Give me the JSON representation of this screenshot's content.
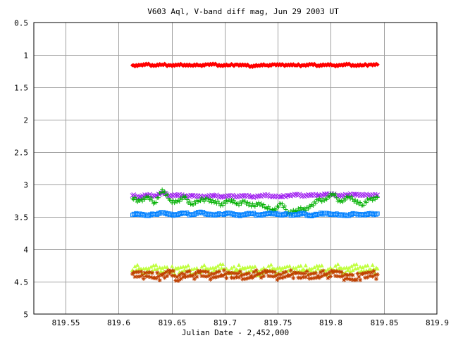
{
  "chart_data": {
    "type": "scatter",
    "title": "V603 Aql, V-band diff mag, Jun 29 2003 UT",
    "xlabel": "Julian Date - 2,452,000",
    "ylabel": "",
    "xlim": [
      819.52,
      819.9
    ],
    "ylim": [
      0.5,
      5
    ],
    "y_inverted": true,
    "grid": true,
    "x_ticks": [
      {
        "value": 819.55,
        "label": "819.55"
      },
      {
        "value": 819.6,
        "label": "819.6"
      },
      {
        "value": 819.65,
        "label": "819.65"
      },
      {
        "value": 819.7,
        "label": "819.7"
      },
      {
        "value": 819.75,
        "label": "819.75"
      },
      {
        "value": 819.8,
        "label": "819.8"
      },
      {
        "value": 819.85,
        "label": "819.85"
      },
      {
        "value": 819.9,
        "label": "819.9"
      }
    ],
    "y_ticks": [
      {
        "value": 0.5,
        "label": "0.5"
      },
      {
        "value": 1,
        "label": "1"
      },
      {
        "value": 1.5,
        "label": "1.5"
      },
      {
        "value": 2,
        "label": "2"
      },
      {
        "value": 2.5,
        "label": "2.5"
      },
      {
        "value": 3,
        "label": "3"
      },
      {
        "value": 3.5,
        "label": "3.5"
      },
      {
        "value": 4,
        "label": "4"
      },
      {
        "value": 4.5,
        "label": "4.5"
      },
      {
        "value": 5,
        "label": "5"
      }
    ],
    "series": [
      {
        "marker": "diamond",
        "color": "#ff0000",
        "x": [
          819.613,
          819.62,
          819.627,
          819.634,
          819.641,
          819.648,
          819.655,
          819.662,
          819.669,
          819.676,
          819.683,
          819.69,
          819.697,
          819.704,
          819.711,
          819.718,
          819.725,
          819.732,
          819.739,
          819.746,
          819.753,
          819.76,
          819.767,
          819.774,
          819.781,
          819.788,
          819.795,
          819.802,
          819.809,
          819.816,
          819.823,
          819.83,
          819.837,
          819.844
        ],
        "y": [
          1.16,
          1.16,
          1.15,
          1.16,
          1.15,
          1.16,
          1.16,
          1.15,
          1.16,
          1.16,
          1.15,
          1.15,
          1.16,
          1.16,
          1.15,
          1.16,
          1.17,
          1.16,
          1.16,
          1.15,
          1.16,
          1.15,
          1.16,
          1.16,
          1.15,
          1.16,
          1.15,
          1.16,
          1.16,
          1.15,
          1.16,
          1.16,
          1.15,
          1.15
        ]
      },
      {
        "marker": "x",
        "color": "#a020f0",
        "x": [
          819.613,
          819.62,
          819.627,
          819.634,
          819.641,
          819.648,
          819.655,
          819.662,
          819.669,
          819.676,
          819.683,
          819.69,
          819.697,
          819.704,
          819.711,
          819.718,
          819.725,
          819.732,
          819.739,
          819.746,
          819.753,
          819.76,
          819.767,
          819.774,
          819.781,
          819.788,
          819.795,
          819.802,
          819.809,
          819.816,
          819.823,
          819.83,
          819.837,
          819.844
        ],
        "y": [
          3.17,
          3.19,
          3.16,
          3.18,
          3.13,
          3.17,
          3.16,
          3.18,
          3.17,
          3.19,
          3.18,
          3.17,
          3.19,
          3.18,
          3.18,
          3.17,
          3.19,
          3.18,
          3.17,
          3.18,
          3.19,
          3.17,
          3.16,
          3.17,
          3.16,
          3.17,
          3.15,
          3.16,
          3.17,
          3.16,
          3.15,
          3.17,
          3.16,
          3.16
        ]
      },
      {
        "marker": "plus",
        "color": "#00b000",
        "x": [
          819.613,
          819.62,
          819.627,
          819.634,
          819.641,
          819.648,
          819.655,
          819.662,
          819.669,
          819.676,
          819.683,
          819.69,
          819.697,
          819.704,
          819.711,
          819.718,
          819.725,
          819.732,
          819.739,
          819.746,
          819.753,
          819.76,
          819.767,
          819.774,
          819.781,
          819.788,
          819.795,
          819.802,
          819.809,
          819.816,
          819.823,
          819.83,
          819.837,
          819.844
        ],
        "y": [
          3.22,
          3.25,
          3.2,
          3.28,
          3.08,
          3.24,
          3.27,
          3.2,
          3.3,
          3.25,
          3.22,
          3.28,
          3.3,
          3.24,
          3.3,
          3.26,
          3.34,
          3.28,
          3.36,
          3.4,
          3.3,
          3.43,
          3.4,
          3.38,
          3.34,
          3.25,
          3.22,
          3.14,
          3.27,
          3.2,
          3.24,
          3.32,
          3.22,
          3.2
        ]
      },
      {
        "marker": "square",
        "color": "#0080ff",
        "x": [
          819.613,
          819.62,
          819.627,
          819.634,
          819.641,
          819.648,
          819.655,
          819.662,
          819.669,
          819.676,
          819.683,
          819.69,
          819.697,
          819.704,
          819.711,
          819.718,
          819.725,
          819.732,
          819.739,
          819.746,
          819.753,
          819.76,
          819.767,
          819.774,
          819.781,
          819.788,
          819.795,
          819.802,
          819.809,
          819.816,
          819.823,
          819.83,
          819.837,
          819.844
        ],
        "y": [
          3.47,
          3.45,
          3.48,
          3.46,
          3.43,
          3.47,
          3.46,
          3.44,
          3.47,
          3.43,
          3.45,
          3.47,
          3.46,
          3.44,
          3.48,
          3.46,
          3.45,
          3.47,
          3.46,
          3.44,
          3.47,
          3.46,
          3.47,
          3.45,
          3.48,
          3.46,
          3.44,
          3.47,
          3.46,
          3.48,
          3.45,
          3.47,
          3.46,
          3.45
        ]
      },
      {
        "marker": "triangle",
        "color": "#c0ff40",
        "x": [
          819.613,
          819.62,
          819.627,
          819.634,
          819.641,
          819.648,
          819.655,
          819.662,
          819.669,
          819.676,
          819.683,
          819.69,
          819.697,
          819.704,
          819.711,
          819.718,
          819.725,
          819.732,
          819.739,
          819.746,
          819.753,
          819.76,
          819.767,
          819.774,
          819.781,
          819.788,
          819.795,
          819.802,
          819.809,
          819.816,
          819.823,
          819.83,
          819.837,
          819.844
        ],
        "y": [
          4.32,
          4.3,
          4.33,
          4.31,
          4.29,
          4.34,
          4.3,
          4.32,
          4.31,
          4.33,
          4.3,
          4.32,
          4.29,
          4.33,
          4.31,
          4.3,
          4.32,
          4.34,
          4.31,
          4.3,
          4.32,
          4.33,
          4.29,
          4.31,
          4.32,
          4.3,
          4.33,
          4.31,
          4.29,
          4.32,
          4.3,
          4.28,
          4.31,
          4.3
        ]
      },
      {
        "marker": "star",
        "color": "#c04000",
        "x": [
          819.613,
          819.62,
          819.627,
          819.634,
          819.641,
          819.648,
          819.655,
          819.662,
          819.669,
          819.676,
          819.683,
          819.69,
          819.697,
          819.704,
          819.711,
          819.718,
          819.725,
          819.732,
          819.739,
          819.746,
          819.753,
          819.76,
          819.767,
          819.774,
          819.781,
          819.788,
          819.795,
          819.802,
          819.809,
          819.816,
          819.823,
          819.83,
          819.837,
          819.844
        ],
        "y": [
          4.38,
          4.42,
          4.36,
          4.44,
          4.4,
          4.37,
          4.43,
          4.39,
          4.41,
          4.36,
          4.42,
          4.38,
          4.4,
          4.37,
          4.43,
          4.39,
          4.41,
          4.38,
          4.36,
          4.42,
          4.39,
          4.4,
          4.37,
          4.43,
          4.38,
          4.41,
          4.39,
          4.36,
          4.42,
          4.4,
          4.47,
          4.38,
          4.41,
          4.39
        ]
      }
    ]
  }
}
